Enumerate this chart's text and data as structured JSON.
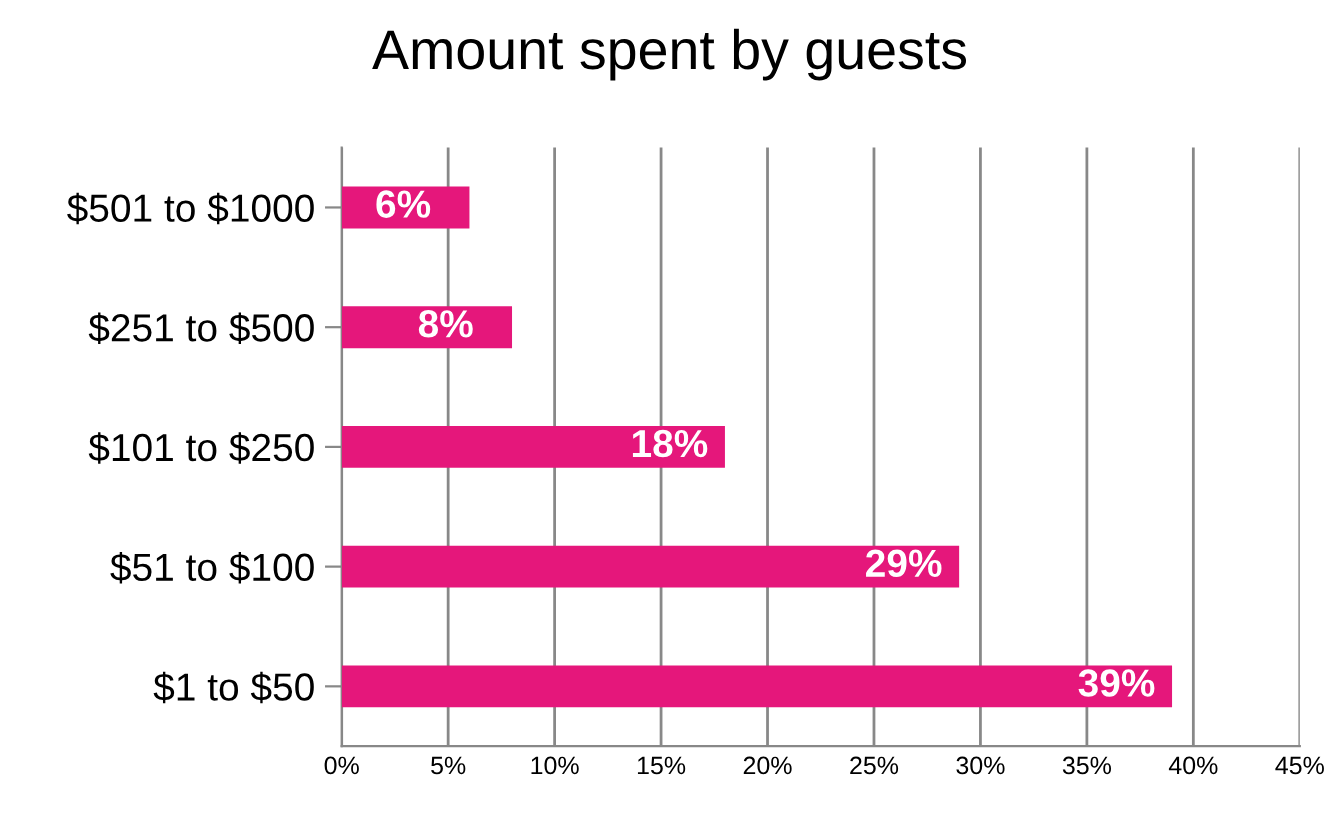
{
  "chart_data": {
    "type": "bar",
    "orientation": "horizontal",
    "title": "Amount spent by guests",
    "categories": [
      "$501 to $1000",
      "$251 to $500",
      "$101 to $250",
      "$51 to $100",
      "$1 to $50"
    ],
    "values": [
      6,
      8,
      18,
      29,
      39
    ],
    "value_labels": [
      "6%",
      "8%",
      "18%",
      "29%",
      "39%"
    ],
    "color": "#e5177b",
    "xlim": [
      0,
      45
    ],
    "xticks": [
      {
        "value": 0,
        "label": "0%"
      },
      {
        "value": 5,
        "label": "5%"
      },
      {
        "value": 10,
        "label": "10%"
      },
      {
        "value": 15,
        "label": "15%"
      },
      {
        "value": 20,
        "label": "20%"
      },
      {
        "value": 25,
        "label": "25%"
      },
      {
        "value": 30,
        "label": "30%"
      },
      {
        "value": 35,
        "label": "35%"
      },
      {
        "value": 40,
        "label": "40%"
      },
      {
        "value": 45,
        "label": "45%"
      }
    ],
    "grid": "x",
    "legend": false
  }
}
